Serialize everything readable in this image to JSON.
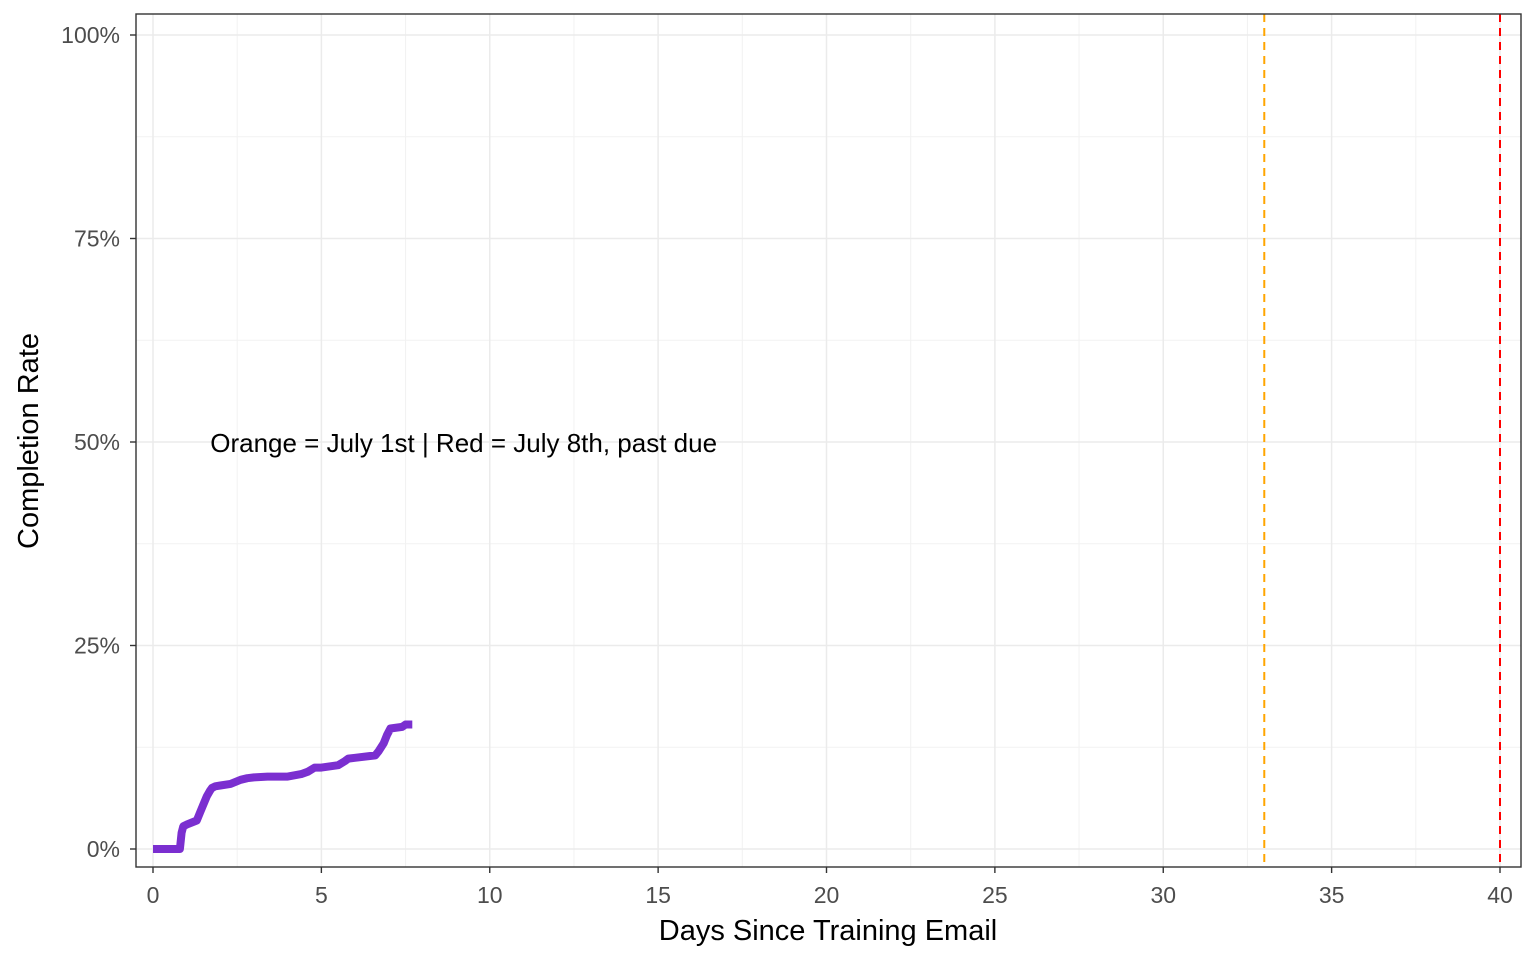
{
  "chart_data": {
    "type": "line",
    "xlabel": "Days Since Training Email",
    "ylabel": "Completion Rate",
    "xlim": [
      0,
      40
    ],
    "ylim": [
      0,
      1
    ],
    "x_ticks": [
      0,
      5,
      10,
      15,
      20,
      25,
      30,
      35,
      40
    ],
    "x_tick_labels": [
      "0",
      "5",
      "10",
      "15",
      "20",
      "25",
      "30",
      "35",
      "40"
    ],
    "y_ticks": [
      0,
      0.25,
      0.5,
      0.75,
      1.0
    ],
    "y_tick_labels": [
      "0%",
      "25%",
      "50%",
      "75%",
      "100%"
    ],
    "grid": true,
    "series": [
      {
        "color": "#7b2fd0",
        "x": [
          0,
          0.8,
          0.85,
          0.9,
          1.0,
          1.3,
          1.4,
          1.5,
          1.6,
          1.7,
          1.75,
          1.85,
          2.0,
          2.3,
          2.6,
          2.8,
          3.0,
          3.4,
          4.0,
          4.4,
          4.6,
          4.8,
          5.0,
          5.5,
          5.7,
          5.8,
          6.0,
          6.6,
          6.7,
          6.85,
          6.95,
          7.05,
          7.4,
          7.5,
          7.7
        ],
        "y": [
          0.0,
          0.0,
          0.02,
          0.028,
          0.03,
          0.035,
          0.045,
          0.055,
          0.065,
          0.072,
          0.075,
          0.077,
          0.078,
          0.08,
          0.085,
          0.087,
          0.088,
          0.089,
          0.089,
          0.092,
          0.095,
          0.1,
          0.1,
          0.103,
          0.108,
          0.111,
          0.112,
          0.115,
          0.12,
          0.13,
          0.14,
          0.148,
          0.15,
          0.153,
          0.153
        ]
      }
    ],
    "reference_lines": [
      {
        "axis": "x",
        "value": 33,
        "color": "#ffa500",
        "style": "dashed"
      },
      {
        "axis": "x",
        "value": 40,
        "color": "#ff0000",
        "style": "dashed"
      }
    ],
    "annotations": [
      {
        "text": "Orange = July 1st | Red = July 8th, past due",
        "x": 1.7,
        "y": 0.5
      }
    ]
  }
}
